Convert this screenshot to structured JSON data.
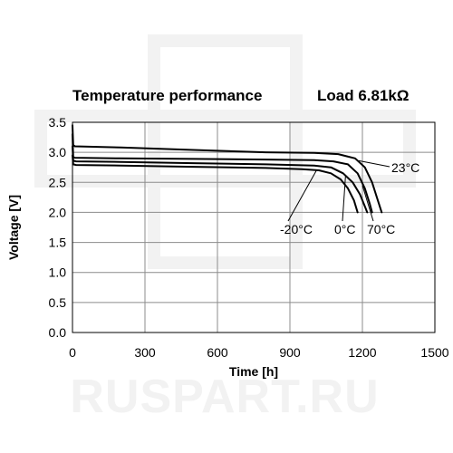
{
  "chart_data": {
    "type": "line",
    "title": "Temperature performance",
    "subtitle": "Load 6.81kΩ",
    "xlabel": "Time [h]",
    "ylabel": "Voltage [V]",
    "xlim": [
      0,
      1500
    ],
    "ylim": [
      0.0,
      3.5
    ],
    "x_ticks": [
      0,
      300,
      600,
      900,
      1200,
      1500
    ],
    "x_tick_labels": [
      "0",
      "300",
      "600",
      "900",
      "1200",
      "1500"
    ],
    "y_ticks": [
      0.0,
      0.5,
      1.0,
      1.5,
      2.0,
      2.5,
      3.0,
      3.5
    ],
    "y_tick_labels": [
      "0.0",
      "0.5",
      "1.0",
      "1.5",
      "2.0",
      "2.5",
      "3.0",
      "3.5"
    ],
    "grid": true,
    "series": [
      {
        "name": "-20°C",
        "x": [
          0,
          3,
          15,
          200,
          500,
          800,
          950,
          1020,
          1070,
          1110,
          1140,
          1165,
          1180
        ],
        "y": [
          2.95,
          2.8,
          2.79,
          2.78,
          2.76,
          2.74,
          2.72,
          2.7,
          2.65,
          2.55,
          2.4,
          2.2,
          2.0
        ]
      },
      {
        "name": "0°C",
        "x": [
          0,
          3,
          15,
          200,
          500,
          800,
          1000,
          1070,
          1120,
          1160,
          1190,
          1210,
          1220
        ],
        "y": [
          3.1,
          2.86,
          2.85,
          2.84,
          2.82,
          2.8,
          2.78,
          2.75,
          2.65,
          2.5,
          2.3,
          2.1,
          2.0
        ]
      },
      {
        "name": "70°C",
        "x": [
          0,
          3,
          10,
          200,
          500,
          800,
          1000,
          1080,
          1140,
          1180,
          1210,
          1230,
          1240
        ],
        "y": [
          3.3,
          2.92,
          2.91,
          2.9,
          2.89,
          2.88,
          2.87,
          2.85,
          2.8,
          2.65,
          2.4,
          2.15,
          2.0
        ]
      },
      {
        "name": "23°C",
        "x": [
          0,
          3,
          10,
          200,
          500,
          800,
          1000,
          1100,
          1170,
          1210,
          1240,
          1260,
          1280
        ],
        "y": [
          3.45,
          3.12,
          3.1,
          3.08,
          3.04,
          3.0,
          2.99,
          2.97,
          2.9,
          2.75,
          2.5,
          2.25,
          2.0
        ]
      }
    ]
  },
  "watermark": "RUSPART.RU"
}
